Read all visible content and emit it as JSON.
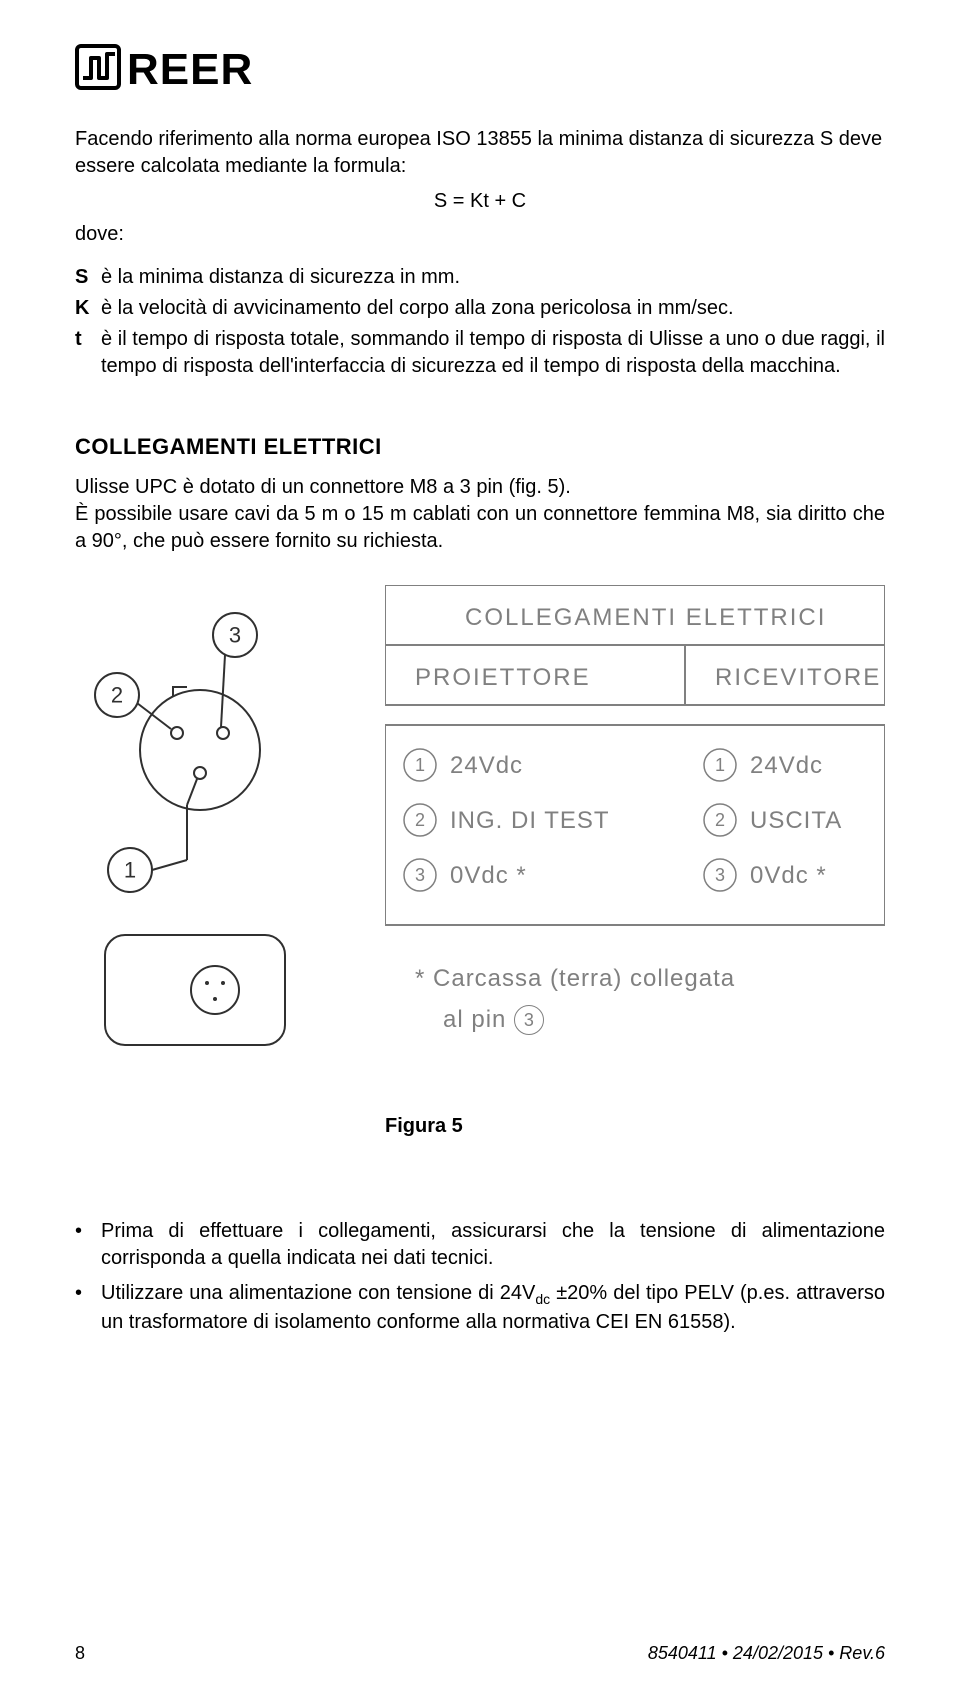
{
  "logo": {
    "text": "REER"
  },
  "intro": "Facendo riferimento alla norma europea ISO 13855 la minima distanza di sicurezza S deve essere calcolata mediante la formula:",
  "formula": "S = Kt + C",
  "dove": "dove:",
  "defs": [
    {
      "key": "S",
      "val": "è la minima distanza di sicurezza in mm."
    },
    {
      "key": "K",
      "val": "è la velocità di avvicinamento del corpo alla zona pericolosa in mm/sec."
    },
    {
      "key": "t",
      "val": "è il tempo di risposta totale, sommando il tempo di risposta di Ulisse a uno o due raggi, il tempo di risposta dell'interfaccia di sicurezza ed il tempo di risposta della macchina."
    }
  ],
  "section": {
    "heading": "COLLEGAMENTI ELETTRICI",
    "body1": "Ulisse UPC è dotato di un connettore M8 a 3 pin (fig. 5).",
    "body2": "È possibile usare cavi da 5 m o 15 m cablati con un connettore femmina M8, sia diritto che a 90°, che può essere fornito su richiesta."
  },
  "connector": {
    "labels": {
      "pin1": "1",
      "pin2": "2",
      "pin3": "3"
    }
  },
  "table": {
    "title": "COLLEGAMENTI ELETTRICI",
    "col1": "PROIETTORE",
    "col2": "RICEVITORE",
    "rows_left": [
      {
        "num": "1",
        "label": "24Vdc"
      },
      {
        "num": "2",
        "label": "ING. DI TEST"
      },
      {
        "num": "3",
        "label": "0Vdc *"
      }
    ],
    "rows_right": [
      {
        "num": "1",
        "label": "24Vdc"
      },
      {
        "num": "2",
        "label": "USCITA"
      },
      {
        "num": "3",
        "label": "0Vdc *"
      }
    ],
    "footnote1": "* Carcassa (terra) collegata",
    "footnote2a": "al pin",
    "footnote2b": "3"
  },
  "figure_caption": "Figura 5",
  "bullets": [
    "Prima di effettuare i collegamenti, assicurarsi che la tensione di alimentazione corrisponda a quella indicata nei dati tecnici.",
    "Utilizzare una alimentazione con tensione di 24V<sub>dc</sub> ±20% del tipo PELV (p.es. attraverso un trasformatore di isolamento conforme alla normativa CEI EN 61558)."
  ],
  "footer": {
    "page": "8",
    "code": "8540411 • 24/02/2015 • Rev.6"
  },
  "colors": {
    "text": "#000000",
    "diagram_gray": "#808080",
    "diagram_stroke": "#303030",
    "bg": "#ffffff"
  }
}
